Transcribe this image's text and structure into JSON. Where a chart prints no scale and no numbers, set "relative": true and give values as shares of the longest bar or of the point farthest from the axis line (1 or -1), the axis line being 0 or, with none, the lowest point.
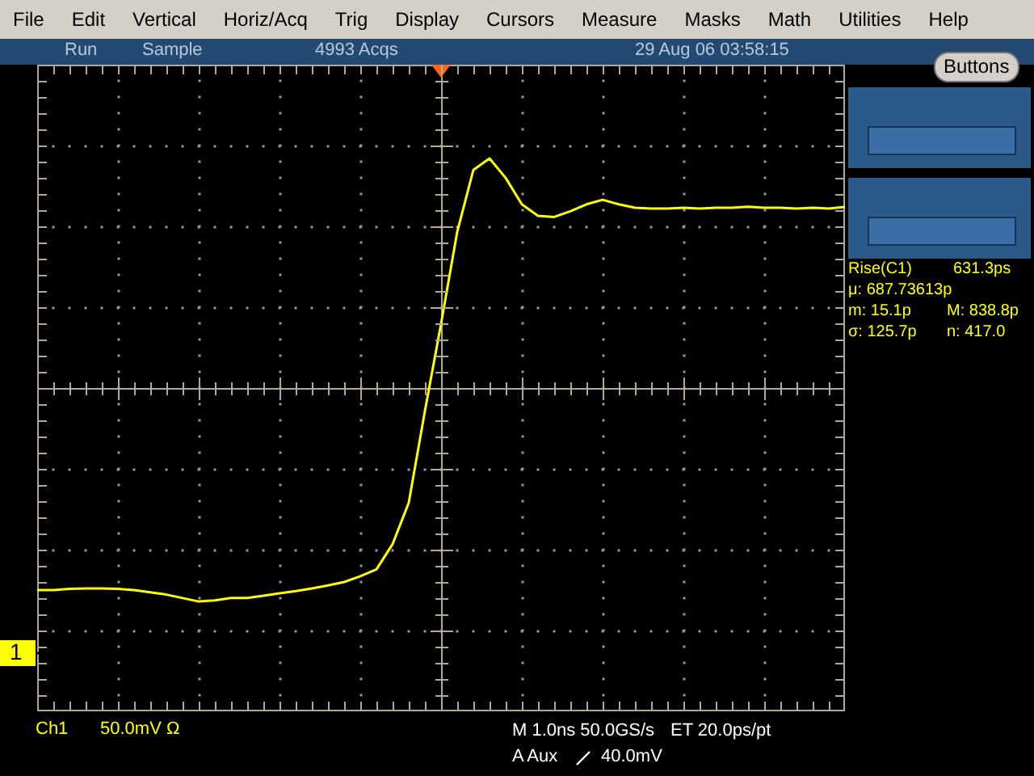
{
  "chart_data": {
    "type": "line",
    "relative": true,
    "grid": true,
    "legend": false,
    "marker": "none",
    "line_style": "solid",
    "tick_labels": false,
    "categories": [
      null,
      null,
      null,
      null,
      null,
      null,
      null,
      null,
      null,
      null,
      null,
      null,
      null,
      null,
      null,
      null,
      null,
      null,
      null,
      null,
      null,
      null,
      null,
      null,
      null,
      null,
      null,
      null,
      null,
      null,
      null,
      null,
      null,
      null,
      null,
      null,
      null,
      null,
      null,
      null,
      null,
      null,
      null,
      null,
      null,
      null,
      null,
      null,
      null,
      null,
      null
    ],
    "series": [
      {
        "color": "#ffff00",
        "values": [
          -0.88,
          -0.88,
          -0.875,
          -0.873,
          -0.873,
          -0.875,
          -0.88,
          -0.89,
          -0.9,
          -0.915,
          -0.93,
          -0.925,
          -0.915,
          -0.915,
          -0.905,
          -0.894,
          -0.885,
          -0.873,
          -0.86,
          -0.845,
          -0.82,
          -0.79,
          -0.68,
          -0.5,
          -0.1,
          0.28,
          0.68,
          0.95,
          1,
          0.915,
          0.8,
          0.75,
          0.745,
          0.77,
          0.8,
          0.82,
          0.8,
          0.785,
          0.782,
          0.782,
          0.785,
          0.782,
          0.785,
          0.785,
          0.79,
          0.785,
          0.785,
          0.782,
          0.785,
          0.782,
          0.789
        ]
      }
    ],
    "annotations": [
      "File",
      "Edit",
      "Vertical",
      "Horiz/Acq",
      "Trig",
      "Display",
      "Cursors",
      "Measure",
      "Masks",
      "Math",
      "Utilities",
      "Help",
      "Run",
      "Sample",
      "4993 Acqs",
      "29 Aug 06 03:58:15",
      "Buttons",
      "Rise(C1)",
      "631.3ps",
      "μ: 687.73613p",
      "m: 15.1p",
      "M: 838.8p",
      "σ: 125.7p",
      "n: 417.0",
      "1",
      "Ch1",
      "50.0mV  Ω",
      "M 1.0ns 50.0GS/s",
      "ET 20.0ps/pt",
      "A  Aux",
      "40.0mV"
    ]
  }
}
